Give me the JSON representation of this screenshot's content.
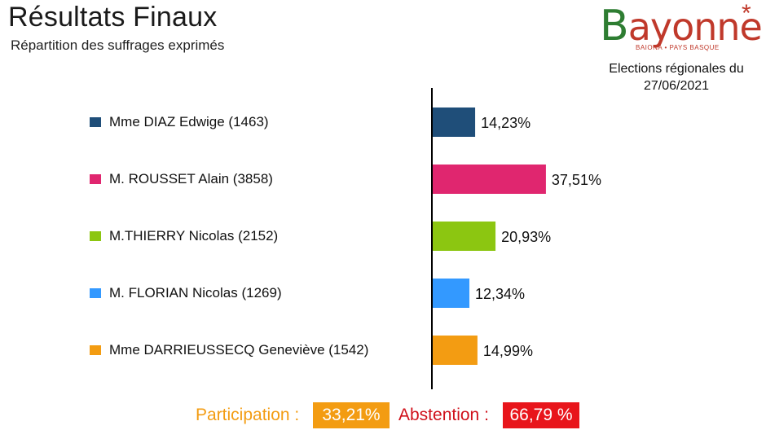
{
  "header": {
    "title": "Résultats Finaux",
    "subtitle": "Répartition des suffrages exprimés"
  },
  "logo": {
    "first_letter": "B",
    "rest": "ayonne",
    "star": "*",
    "tagline": "BAIONA • PAYS BASQUE"
  },
  "election": {
    "line1": "Elections régionales du",
    "line2": "27/06/2021"
  },
  "chart_data": {
    "type": "bar",
    "orientation": "horizontal",
    "categories": [
      "Mme DIAZ Edwige (1463)",
      "M. ROUSSET Alain (3858)",
      "M.THIERRY Nicolas (2152)",
      "M. FLORIAN Nicolas (1269)",
      "Mme DARRIEUSSECQ Geneviève (1542)"
    ],
    "values": [
      14.23,
      37.51,
      20.93,
      12.34,
      14.99
    ],
    "value_labels": [
      "14,23%",
      "37,51%",
      "20,93%",
      "12,34%",
      "14,99%"
    ],
    "colors": [
      "#1f4e79",
      "#e0266f",
      "#8cc611",
      "#3399ff",
      "#f39c12"
    ],
    "xlim": [
      0,
      100
    ],
    "grid": false,
    "legend": "left",
    "title": "",
    "xlabel": "",
    "ylabel": ""
  },
  "footer": {
    "participation_label": "Participation :",
    "participation_value": "33,21%",
    "abstention_label": "Abstention :",
    "abstention_value": "66,79 %",
    "colors": {
      "participation": "#f39c12",
      "abstention": "#e8151b",
      "participation_text": "#f39c12",
      "abstention_text": "#d0101a"
    }
  }
}
